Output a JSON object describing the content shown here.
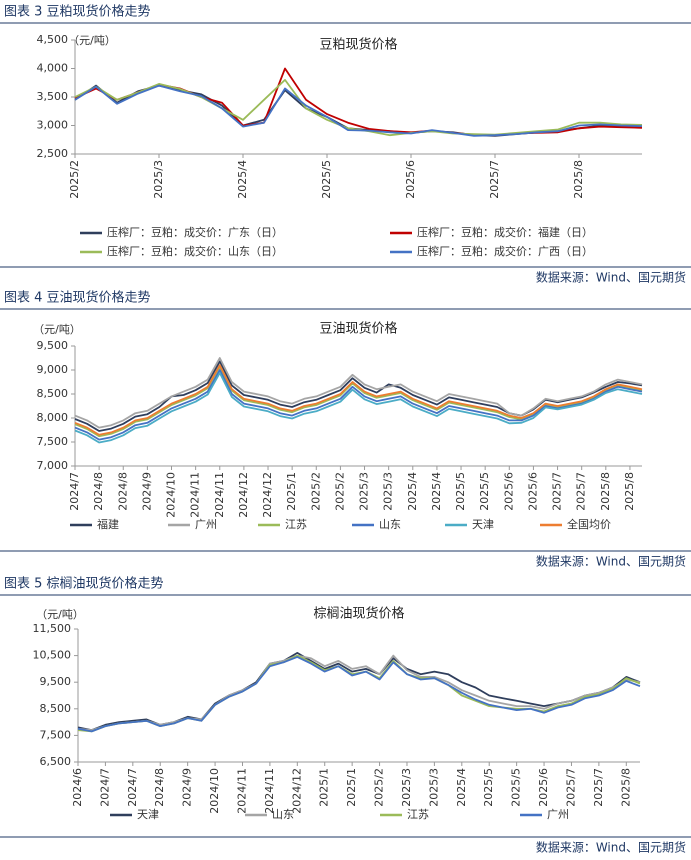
{
  "figures": [
    {
      "heading": "图表 3 豆粕现货价格走势",
      "source": "数据来源：Wind、国元期货",
      "chart_data": {
        "type": "line",
        "title": "豆粕现货价格",
        "y_unit": "（元/吨）",
        "categories": [
          "2025/2",
          null,
          null,
          null,
          "2025/3",
          null,
          null,
          null,
          "2025/4",
          null,
          null,
          null,
          "2025/5",
          null,
          null,
          null,
          "2025/6",
          null,
          null,
          null,
          "2025/7",
          null,
          null,
          null,
          "2025/8",
          null,
          null,
          null
        ],
        "ylim": [
          2500,
          4500
        ],
        "yticks": [
          {
            "value": 2500,
            "label": "2,500"
          },
          {
            "value": 3000,
            "label": "3,000"
          },
          {
            "value": 3500,
            "label": "3,500"
          },
          {
            "value": 4000,
            "label": "4,000"
          },
          {
            "value": 4500,
            "label": "4,500"
          }
        ],
        "series": [
          {
            "name": "压榨厂：豆粕：成交价：广东（日）",
            "color": "#2f3e5c",
            "values": [
              3450,
              3700,
              3400,
              3600,
              3700,
              3620,
              3550,
              3350,
              3000,
              3100,
              3620,
              3300,
              3150,
              2950,
              2920,
              2900,
              2870,
              2900,
              2880,
              2830,
              2820,
              2850,
              2880,
              2900,
              2950,
              3000,
              2990,
              2980
            ]
          },
          {
            "name": "压榨厂：豆粕：成交价：福建（日）",
            "color": "#c00000",
            "values": [
              3480,
              3650,
              3450,
              3580,
              3720,
              3650,
              3500,
              3400,
              3000,
              3050,
              4000,
              3450,
              3200,
              3050,
              2940,
              2900,
              2880,
              2910,
              2870,
              2840,
              2830,
              2860,
              2870,
              2880,
              2950,
              2980,
              2970,
              2960
            ]
          },
          {
            "name": "压榨厂：豆粕：成交价：山东（日）",
            "color": "#9bbb59",
            "values": [
              3500,
              3680,
              3450,
              3580,
              3730,
              3640,
              3500,
              3300,
              3100,
              3450,
              3800,
              3300,
              3100,
              2950,
              2900,
              2830,
              2870,
              2900,
              2860,
              2850,
              2840,
              2870,
              2900,
              2930,
              3050,
              3050,
              3020,
              3010
            ]
          },
          {
            "name": "压榨厂：豆粕：成交价：广西（日）",
            "color": "#4472c4",
            "values": [
              3450,
              3680,
              3380,
              3560,
              3700,
              3600,
              3520,
              3300,
              2980,
              3050,
              3650,
              3350,
              3150,
              2920,
              2910,
              2880,
              2860,
              2920,
              2870,
              2820,
              2830,
              2850,
              2880,
              2900,
              3000,
              3020,
              3000,
              2990
            ]
          }
        ]
      }
    },
    {
      "heading": "图表 4 豆油现货价格走势",
      "source": "数据来源：Wind、国元期货",
      "chart_data": {
        "type": "line",
        "title": "豆油现货价格",
        "y_unit": "（元/吨）",
        "categories": [
          "2024/7",
          null,
          "2024/8",
          null,
          "2024/8",
          null,
          "2024/9",
          null,
          "2024/10",
          null,
          "2024/11",
          null,
          "2024/11",
          null,
          "2024/12",
          null,
          "2024/12",
          null,
          "2025/1",
          null,
          "2025/2",
          null,
          "2025/2",
          null,
          "2025/3",
          null,
          "2025/3",
          null,
          "2025/4",
          null,
          "2025/4",
          null,
          "2025/5",
          null,
          "2025/5",
          null,
          "2025/6",
          null,
          "2025/6",
          null,
          "2025/7",
          null,
          "2025/7",
          null,
          "2025/8",
          null,
          "2025/8",
          null
        ],
        "ylim": [
          7000,
          9500
        ],
        "yticks": [
          {
            "value": 7000,
            "label": "7,000"
          },
          {
            "value": 7500,
            "label": "7,500"
          },
          {
            "value": 8000,
            "label": "8,000"
          },
          {
            "value": 8500,
            "label": "8,500"
          },
          {
            "value": 9000,
            "label": "9,000"
          },
          {
            "value": 9500,
            "label": "9,500"
          }
        ],
        "series": [
          {
            "name": "福建",
            "color": "#2f3e5c",
            "values": [
              7980,
              7880,
              7730,
              7780,
              7880,
              8030,
              8080,
              8230,
              8450,
              8480,
              8580,
              8730,
              9180,
              8680,
              8480,
              8430,
              8380,
              8280,
              8230,
              8330,
              8380,
              8480,
              8580,
              8830,
              8630,
              8530,
              8700,
              8630,
              8480,
              8380,
              8280,
              8430,
              8380,
              8330,
              8280,
              8230,
              8100,
              8050,
              8180,
              8380,
              8330,
              8380,
              8430,
              8530,
              8650,
              8750,
              8720,
              8680
            ]
          },
          {
            "name": "广州",
            "color": "#a5a5a5",
            "values": [
              8050,
              7950,
              7800,
              7850,
              7950,
              8100,
              8150,
              8300,
              8450,
              8550,
              8650,
              8800,
              9250,
              8750,
              8550,
              8500,
              8450,
              8350,
              8300,
              8400,
              8450,
              8550,
              8650,
              8900,
              8700,
              8600,
              8650,
              8700,
              8550,
              8450,
              8350,
              8500,
              8450,
              8400,
              8350,
              8300,
              8100,
              8050,
              8200,
              8400,
              8350,
              8400,
              8450,
              8550,
              8700,
              8800,
              8750,
              8700
            ]
          },
          {
            "name": "江苏",
            "color": "#9bbb59",
            "values": [
              7870,
              7770,
              7620,
              7670,
              7770,
              7920,
              7970,
              8120,
              8270,
              8370,
              8470,
              8620,
              9070,
              8570,
              8370,
              8320,
              8270,
              8170,
              8120,
              8220,
              8270,
              8370,
              8470,
              8720,
              8520,
              8420,
              8470,
              8520,
              8370,
              8270,
              8170,
              8320,
              8270,
              8220,
              8170,
              8120,
              8020,
              7970,
              8070,
              8270,
              8220,
              8270,
              8320,
              8420,
              8570,
              8670,
              8620,
              8570
            ]
          },
          {
            "name": "山东",
            "color": "#4472c4",
            "values": [
              7800,
              7700,
              7550,
              7600,
              7700,
              7850,
              7900,
              8050,
              8200,
              8300,
              8400,
              8550,
              9000,
              8500,
              8300,
              8250,
              8200,
              8100,
              8050,
              8150,
              8200,
              8300,
              8400,
              8650,
              8450,
              8350,
              8400,
              8450,
              8300,
              8200,
              8100,
              8250,
              8200,
              8150,
              8100,
              8050,
              7950,
              7950,
              8050,
              8250,
              8200,
              8250,
              8300,
              8400,
              8550,
              8650,
              8600,
              8550
            ]
          },
          {
            "name": "天津",
            "color": "#4bacc6",
            "values": [
              7740,
              7640,
              7490,
              7540,
              7640,
              7790,
              7840,
              7990,
              8140,
              8240,
              8340,
              8490,
              8940,
              8440,
              8240,
              8190,
              8140,
              8040,
              7990,
              8090,
              8140,
              8240,
              8340,
              8590,
              8390,
              8290,
              8340,
              8390,
              8240,
              8140,
              8040,
              8190,
              8140,
              8090,
              8040,
              7990,
              7890,
              7900,
              8000,
              8220,
              8180,
              8230,
              8280,
              8380,
              8520,
              8600,
              8550,
              8500
            ]
          },
          {
            "name": "全国均价",
            "color": "#ed7d31",
            "values": [
              7900,
              7800,
              7650,
              7700,
              7800,
              7950,
              8000,
              8150,
              8300,
              8400,
              8500,
              8650,
              9100,
              8600,
              8400,
              8350,
              8300,
              8200,
              8150,
              8250,
              8300,
              8400,
              8500,
              8750,
              8550,
              8450,
              8500,
              8550,
              8400,
              8300,
              8200,
              8350,
              8300,
              8250,
              8200,
              8150,
              8050,
              8000,
              8100,
              8300,
              8250,
              8300,
              8350,
              8450,
              8600,
              8700,
              8650,
              8600
            ]
          }
        ]
      }
    },
    {
      "heading": "图表 5 棕榈油现货价格走势",
      "source": "数据来源：Wind、国元期货",
      "chart_data": {
        "type": "line",
        "title": "棕榈油现货价格",
        "y_unit": "（元/吨）",
        "categories": [
          "2024/6",
          null,
          "2024/7",
          null,
          "2024/7",
          null,
          "2024/8",
          null,
          "2024/9",
          null,
          "2024/10",
          null,
          "2024/11",
          null,
          "2024/11",
          null,
          "2024/12",
          null,
          "2025/1",
          null,
          "2025/1",
          null,
          "2025/2",
          null,
          "2025/3",
          null,
          "2025/3",
          null,
          "2025/4",
          null,
          "2025/5",
          null,
          "2025/5",
          null,
          "2025/6",
          null,
          "2025/7",
          null,
          "2025/7",
          null,
          "2025/8",
          null
        ],
        "ylim": [
          6500,
          11500
        ],
        "yticks": [
          {
            "value": 6500,
            "label": "6,500"
          },
          {
            "value": 7500,
            "label": "7,500"
          },
          {
            "value": 8500,
            "label": "8,500"
          },
          {
            "value": 9500,
            "label": "9,500"
          },
          {
            "value": 10500,
            "label": "10,500"
          },
          {
            "value": 11500,
            "label": "11,500"
          }
        ],
        "series": [
          {
            "name": "天津",
            "color": "#2f3e5c",
            "values": [
              7800,
              7700,
              7900,
              8000,
              8050,
              8100,
              7900,
              8000,
              8200,
              8100,
              8700,
              9000,
              9200,
              9500,
              10200,
              10300,
              10600,
              10300,
              10000,
              10200,
              9900,
              10000,
              9800,
              10400,
              10000,
              9800,
              9900,
              9800,
              9500,
              9300,
              9000,
              8900,
              8800,
              8700,
              8600,
              8700,
              8800,
              9000,
              9100,
              9300,
              9700,
              9500
            ]
          },
          {
            "name": "山东",
            "color": "#a5a5a5",
            "values": [
              7750,
              7700,
              7850,
              7950,
              8000,
              8050,
              7900,
              8000,
              8150,
              8100,
              8650,
              9000,
              9200,
              9450,
              10200,
              10300,
              10500,
              10400,
              10100,
              10300,
              10000,
              10100,
              9800,
              10500,
              9950,
              9700,
              9700,
              9500,
              9200,
              9000,
              8800,
              8700,
              8600,
              8600,
              8500,
              8700,
              8800,
              9000,
              9100,
              9300,
              9600,
              9500
            ]
          },
          {
            "name": "江苏",
            "color": "#9bbb59",
            "values": [
              7700,
              7650,
              7850,
              7950,
              8000,
              8050,
              7850,
              7950,
              8150,
              8050,
              8650,
              8950,
              9150,
              9450,
              10150,
              10250,
              10500,
              10250,
              9950,
              10100,
              9800,
              9900,
              9650,
              10300,
              9800,
              9650,
              9650,
              9400,
              9000,
              8800,
              8600,
              8550,
              8500,
              8500,
              8400,
              8600,
              8700,
              8950,
              9050,
              9250,
              9650,
              9450
            ]
          },
          {
            "name": "广州",
            "color": "#4472c4",
            "values": [
              7750,
              7650,
              7850,
              7950,
              8000,
              8050,
              7850,
              7950,
              8150,
              8050,
              8650,
              8950,
              9150,
              9450,
              10100,
              10250,
              10450,
              10200,
              9900,
              10100,
              9750,
              9900,
              9600,
              10250,
              9800,
              9600,
              9650,
              9400,
              9100,
              8850,
              8650,
              8550,
              8450,
              8500,
              8350,
              8550,
              8650,
              8900,
              9000,
              9200,
              9550,
              9350
            ]
          }
        ]
      }
    }
  ]
}
